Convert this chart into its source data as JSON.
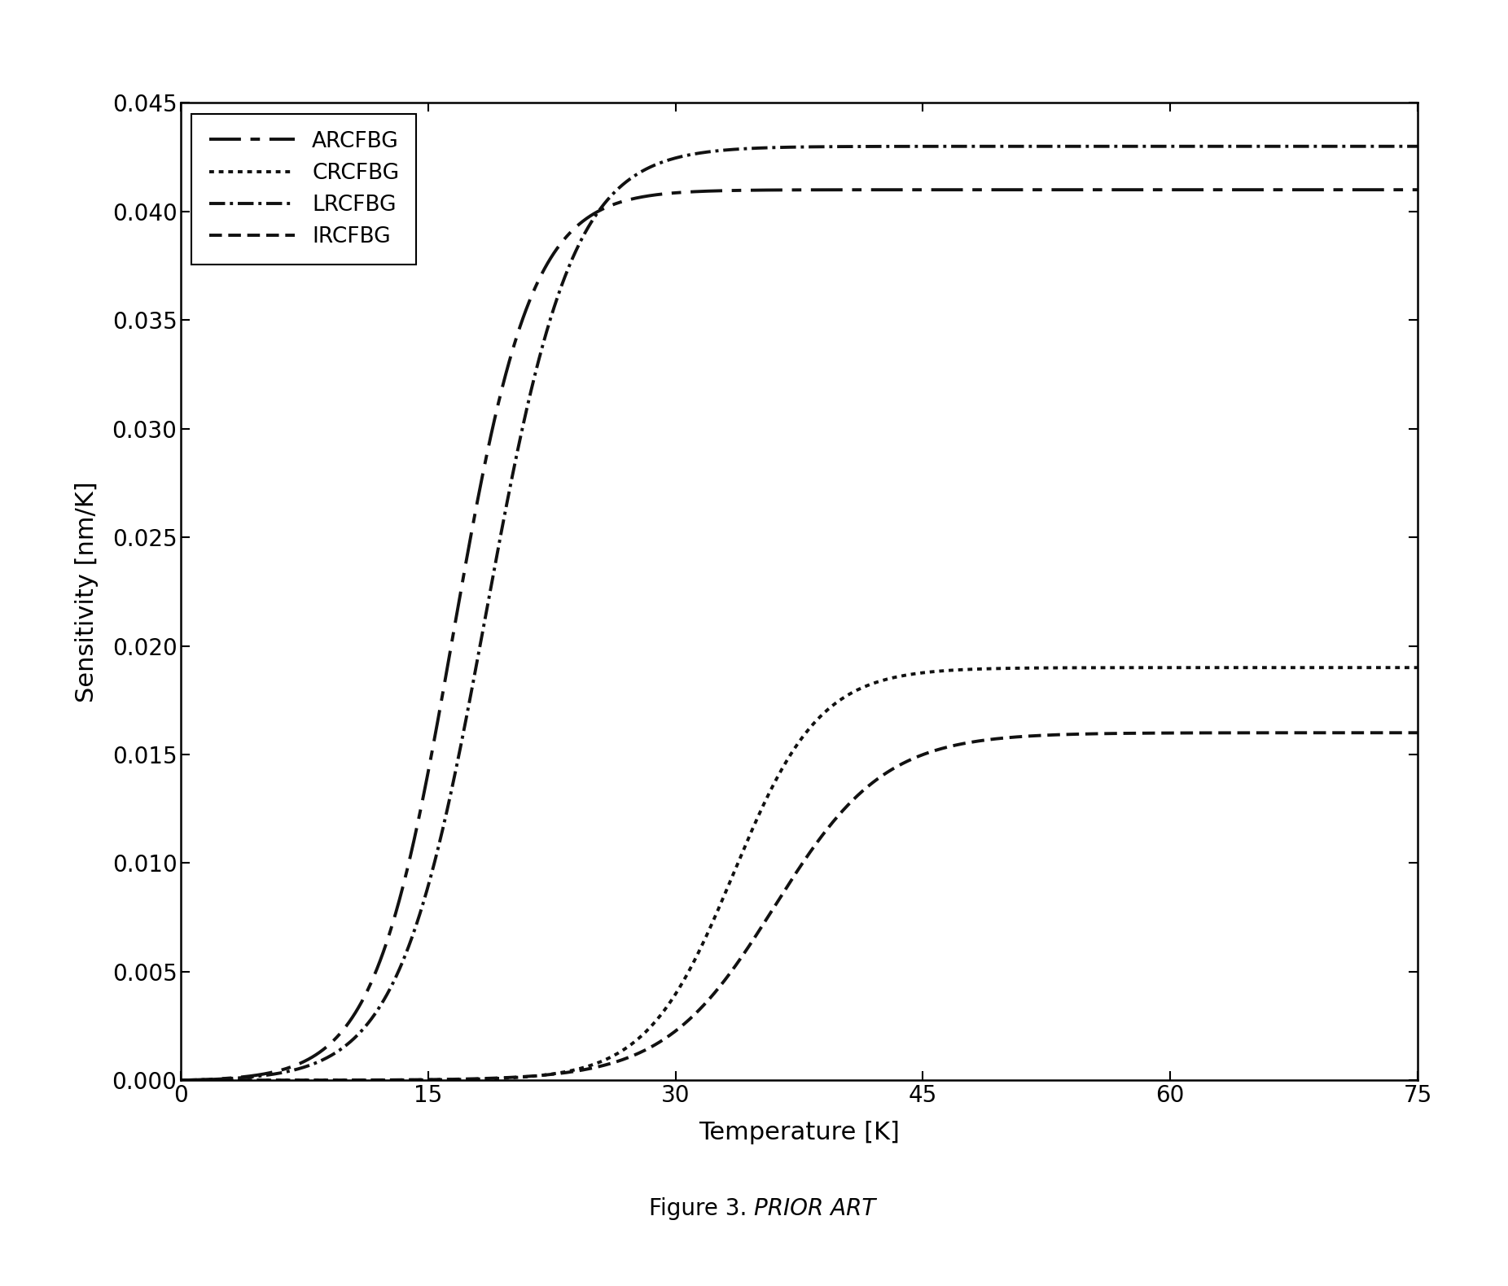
{
  "title": "",
  "xlabel": "Temperature [K]",
  "ylabel": "Sensitivity [nm/K]",
  "xlim": [
    0,
    75
  ],
  "ylim": [
    0,
    0.045
  ],
  "xticks": [
    0,
    15,
    30,
    45,
    60,
    75
  ],
  "yticks": [
    0.0,
    0.005,
    0.01,
    0.015,
    0.02,
    0.025,
    0.03,
    0.035,
    0.04,
    0.045
  ],
  "figure_caption_regular": "Figure 3. ",
  "figure_caption_italic": "PRIOR ART",
  "background_color": "#ffffff",
  "legend_labels": [
    "ARCFBG",
    "CRCFBG",
    "LRCFBG",
    "IRCFBG"
  ],
  "line_color": "#111111",
  "font_size_axes": 22,
  "font_size_ticks": 20,
  "font_size_legend": 19,
  "font_size_caption": 20,
  "curve_ARCFBG": {
    "T_half": 16.5,
    "k": 0.42,
    "S_max": 0.0415
  },
  "curve_LRCFBG": {
    "T_half": 18.5,
    "k": 0.38,
    "S_max": 0.0435
  },
  "curve_CRCFBG": {
    "T_half": 33.5,
    "k": 0.38,
    "S_max": 0.0192
  },
  "curve_IRCFBG": {
    "T_half": 36.0,
    "k": 0.3,
    "S_max": 0.0162
  }
}
